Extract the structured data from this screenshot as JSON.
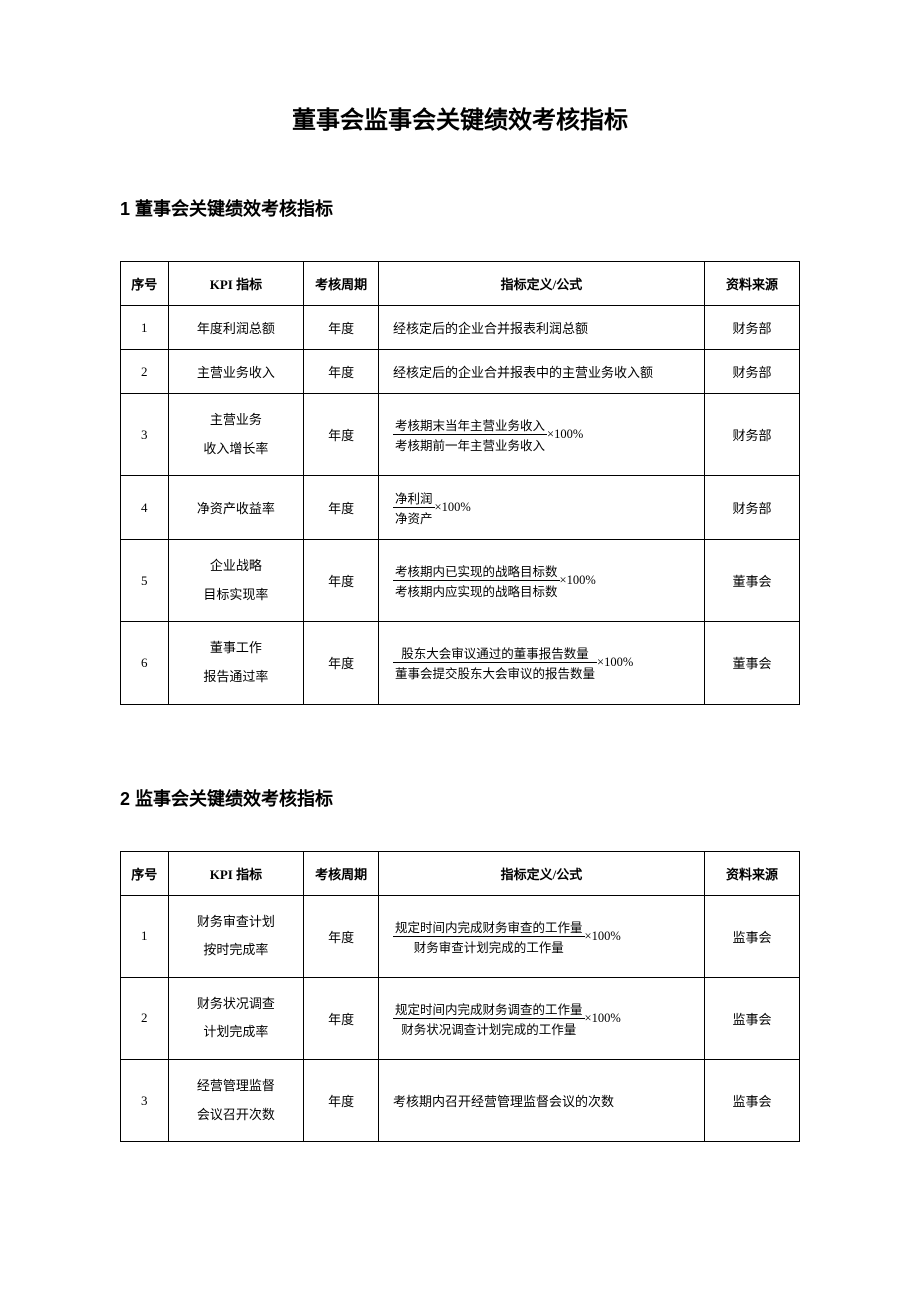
{
  "title": "董事会监事会关键绩效考核指标",
  "section1": {
    "heading": "1 董事会关键绩效考核指标"
  },
  "section2": {
    "heading": "2 监事会关键绩效考核指标"
  },
  "headers": {
    "seq": "序号",
    "kpi": "KPI 指标",
    "period": "考核周期",
    "formula": "指标定义/公式",
    "source": "资料来源"
  },
  "table1": {
    "rows": [
      {
        "seq": "1",
        "kpi_l1": "年度利润总额",
        "kpi_l2": "",
        "period": "年度",
        "formula_type": "text",
        "text": "经核定后的企业合并报表利润总额",
        "source": "财务部"
      },
      {
        "seq": "2",
        "kpi_l1": "主营业务收入",
        "kpi_l2": "",
        "period": "年度",
        "formula_type": "text",
        "text": "经核定后的企业合并报表中的主营业务收入额",
        "source": "财务部"
      },
      {
        "seq": "3",
        "kpi_l1": "主营业务",
        "kpi_l2": "收入增长率",
        "period": "年度",
        "formula_type": "frac",
        "num": "考核期末当年主营业务收入",
        "den": "考核期前一年主营业务收入",
        "suffix": "×100%",
        "source": "财务部"
      },
      {
        "seq": "4",
        "kpi_l1": "净资产收益率",
        "kpi_l2": "",
        "period": "年度",
        "formula_type": "frac",
        "num": "净利润",
        "den": "净资产",
        "suffix": "×100%",
        "source": "财务部"
      },
      {
        "seq": "5",
        "kpi_l1": "企业战略",
        "kpi_l2": "目标实现率",
        "period": "年度",
        "formula_type": "frac",
        "num": "考核期内已实现的战略目标数",
        "den": "考核期内应实现的战略目标数",
        "suffix": "×100%",
        "source": "董事会"
      },
      {
        "seq": "6",
        "kpi_l1": "董事工作",
        "kpi_l2": "报告通过率",
        "period": "年度",
        "formula_type": "frac",
        "num": "股东大会审议通过的董事报告数量",
        "den": "董事会提交股东大会审议的报告数量",
        "suffix": "×100%",
        "source": "董事会"
      }
    ]
  },
  "table2": {
    "rows": [
      {
        "seq": "1",
        "kpi_l1": "财务审查计划",
        "kpi_l2": "按时完成率",
        "period": "年度",
        "formula_type": "frac",
        "num": "规定时间内完成财务审查的工作量",
        "den": "财务审查计划完成的工作量",
        "suffix": "×100%",
        "source": "监事会"
      },
      {
        "seq": "2",
        "kpi_l1": "财务状况调查",
        "kpi_l2": "计划完成率",
        "period": "年度",
        "formula_type": "frac",
        "num": "规定时间内完成财务调查的工作量",
        "den": "财务状况调查计划完成的工作量",
        "suffix": "×100%",
        "source": "监事会"
      },
      {
        "seq": "3",
        "kpi_l1": "经营管理监督",
        "kpi_l2": "会议召开次数",
        "period": "年度",
        "formula_type": "text",
        "text": "考核期内召开经营管理监督会议的次数",
        "source": "监事会"
      }
    ]
  },
  "style": {
    "page_bg": "#ffffff",
    "text_color": "#000000",
    "border_color": "#000000",
    "title_fontsize": 24,
    "heading_fontsize": 18,
    "cell_fontsize": 13,
    "col_widths_pct": [
      7,
      20,
      11,
      48,
      14
    ]
  }
}
